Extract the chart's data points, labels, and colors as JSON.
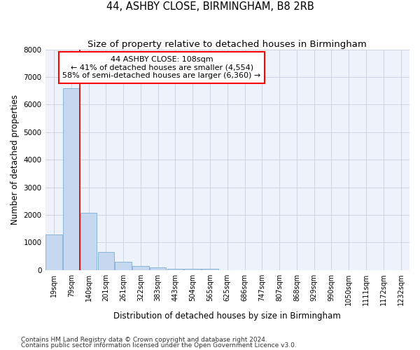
{
  "title": "44, ASHBY CLOSE, BIRMINGHAM, B8 2RB",
  "subtitle": "Size of property relative to detached houses in Birmingham",
  "xlabel": "Distribution of detached houses by size in Birmingham",
  "ylabel": "Number of detached properties",
  "footnote1": "Contains HM Land Registry data © Crown copyright and database right 2024.",
  "footnote2": "Contains public sector information licensed under the Open Government Licence v3.0.",
  "annotation_line1": "44 ASHBY CLOSE: 108sqm",
  "annotation_line2": "← 41% of detached houses are smaller (4,554)",
  "annotation_line3": "58% of semi-detached houses are larger (6,360) →",
  "bar_color": "#c5d8ef",
  "bar_edge_color": "#7bafd4",
  "highlight_color": "#cc0000",
  "background_color": "#eef2fa",
  "categories": [
    "19sqm",
    "79sqm",
    "140sqm",
    "201sqm",
    "261sqm",
    "322sqm",
    "383sqm",
    "443sqm",
    "504sqm",
    "565sqm",
    "625sqm",
    "686sqm",
    "747sqm",
    "807sqm",
    "868sqm",
    "929sqm",
    "990sqm",
    "1050sqm",
    "1111sqm",
    "1172sqm",
    "1232sqm"
  ],
  "values": [
    1300,
    6600,
    2080,
    660,
    300,
    150,
    90,
    55,
    55,
    55,
    0,
    0,
    0,
    0,
    0,
    0,
    0,
    0,
    0,
    0,
    0
  ],
  "red_line_x": 1.5,
  "ylim": [
    0,
    8000
  ],
  "yticks": [
    0,
    1000,
    2000,
    3000,
    4000,
    5000,
    6000,
    7000,
    8000
  ],
  "title_fontsize": 10.5,
  "subtitle_fontsize": 9.5,
  "axis_label_fontsize": 8.5,
  "tick_fontsize": 7,
  "annotation_fontsize": 8,
  "footnote_fontsize": 6.5
}
